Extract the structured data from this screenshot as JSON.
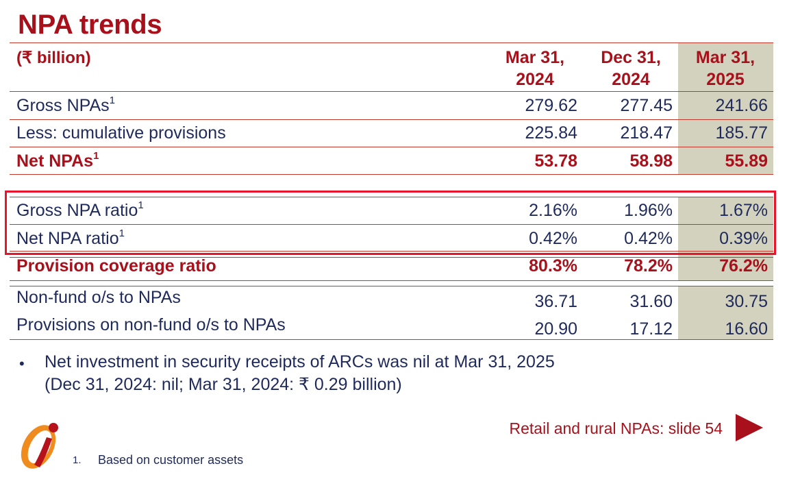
{
  "title": "NPA trends",
  "unit_label": "(₹ billion)",
  "columns": [
    {
      "line1": "Mar 31,",
      "line2": "2024"
    },
    {
      "line1": "Dec 31,",
      "line2": "2024"
    },
    {
      "line1": "Mar 31,",
      "line2": "2025"
    }
  ],
  "rows": [
    {
      "label": "Gross NPAs",
      "sup": "1",
      "values": [
        "279.62",
        "277.45",
        "241.66"
      ]
    },
    {
      "label": "Less: cumulative provisions",
      "sup": "",
      "values": [
        "225.84",
        "218.47",
        "185.77"
      ]
    },
    {
      "label": "Net NPAs",
      "sup": "1",
      "values": [
        "53.78",
        "58.98",
        "55.89"
      ]
    },
    {
      "label": "Gross NPA ratio",
      "sup": "1",
      "values": [
        "2.16%",
        "1.96%",
        "1.67%"
      ]
    },
    {
      "label": "Net NPA ratio",
      "sup": "1",
      "values": [
        "0.42%",
        "0.42%",
        "0.39%"
      ]
    },
    {
      "label": "Provision coverage ratio",
      "sup": "",
      "values": [
        "80.3%",
        "78.2%",
        "76.2%"
      ]
    },
    {
      "label": "Non-fund o/s to NPAs",
      "sup": "",
      "values": [
        "36.71",
        "31.60",
        "30.75"
      ]
    },
    {
      "label": "Provisions on non-fund o/s to NPAs",
      "sup": "",
      "values": [
        "20.90",
        "17.12",
        "16.60"
      ]
    }
  ],
  "note": {
    "line1": "Net investment in security receipts of ARCs was nil at Mar 31, 2025",
    "line2": "(Dec 31, 2024: nil; Mar 31, 2024: ₹ 0.29 billion)"
  },
  "link_text": "Retail and rural NPAs: slide 54",
  "footnote": {
    "number": "1.",
    "text": "Based on customer assets"
  },
  "colors": {
    "brand_red": "#a8111b",
    "navy": "#1f2a5c",
    "highlight_border": "#e8142b",
    "column_shade": "#d3d2be"
  }
}
